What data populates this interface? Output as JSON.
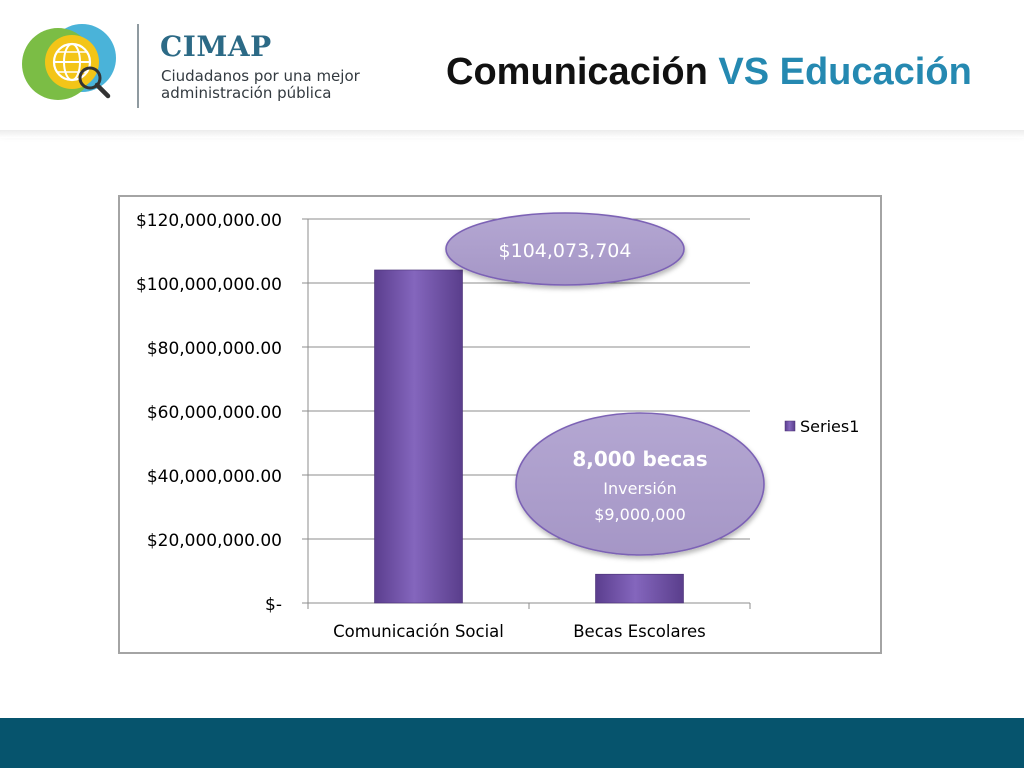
{
  "header": {
    "logo_name": "CIMAP",
    "logo_tagline": "Ciudadanos por una mejor administración pública",
    "title_part1": "Comunicación",
    "title_part2": "VS Educación"
  },
  "colors": {
    "title_dark": "#111111",
    "title_accent": "#2589b1",
    "bar_purple": "#7457a8",
    "callout_fill": "#ad9fcb",
    "callout_stroke": "#7c62b5",
    "footer": "#06546d",
    "grid": "#8c8c8c"
  },
  "callouts": {
    "top_value": "$104,073,704",
    "becas_heading": "8,000 becas",
    "becas_line1": "Inversión",
    "becas_line2": "$9,000,000"
  },
  "chart_data": {
    "type": "bar",
    "categories": [
      "Comunicación Social",
      "Becas Escolares"
    ],
    "series": [
      {
        "name": "Series1",
        "values": [
          104073704,
          9000000
        ]
      }
    ],
    "yticks": [
      0,
      20000000,
      40000000,
      60000000,
      80000000,
      100000000,
      120000000
    ],
    "ytick_labels": [
      "$-",
      "$20,000,000.00",
      "$40,000,000.00",
      "$60,000,000.00",
      "$80,000,000.00",
      "$100,000,000.00",
      "$120,000,000.00"
    ],
    "ylim": [
      0,
      120000000
    ],
    "grid": true,
    "legend": "right",
    "title": "",
    "xlabel": "",
    "ylabel": ""
  }
}
